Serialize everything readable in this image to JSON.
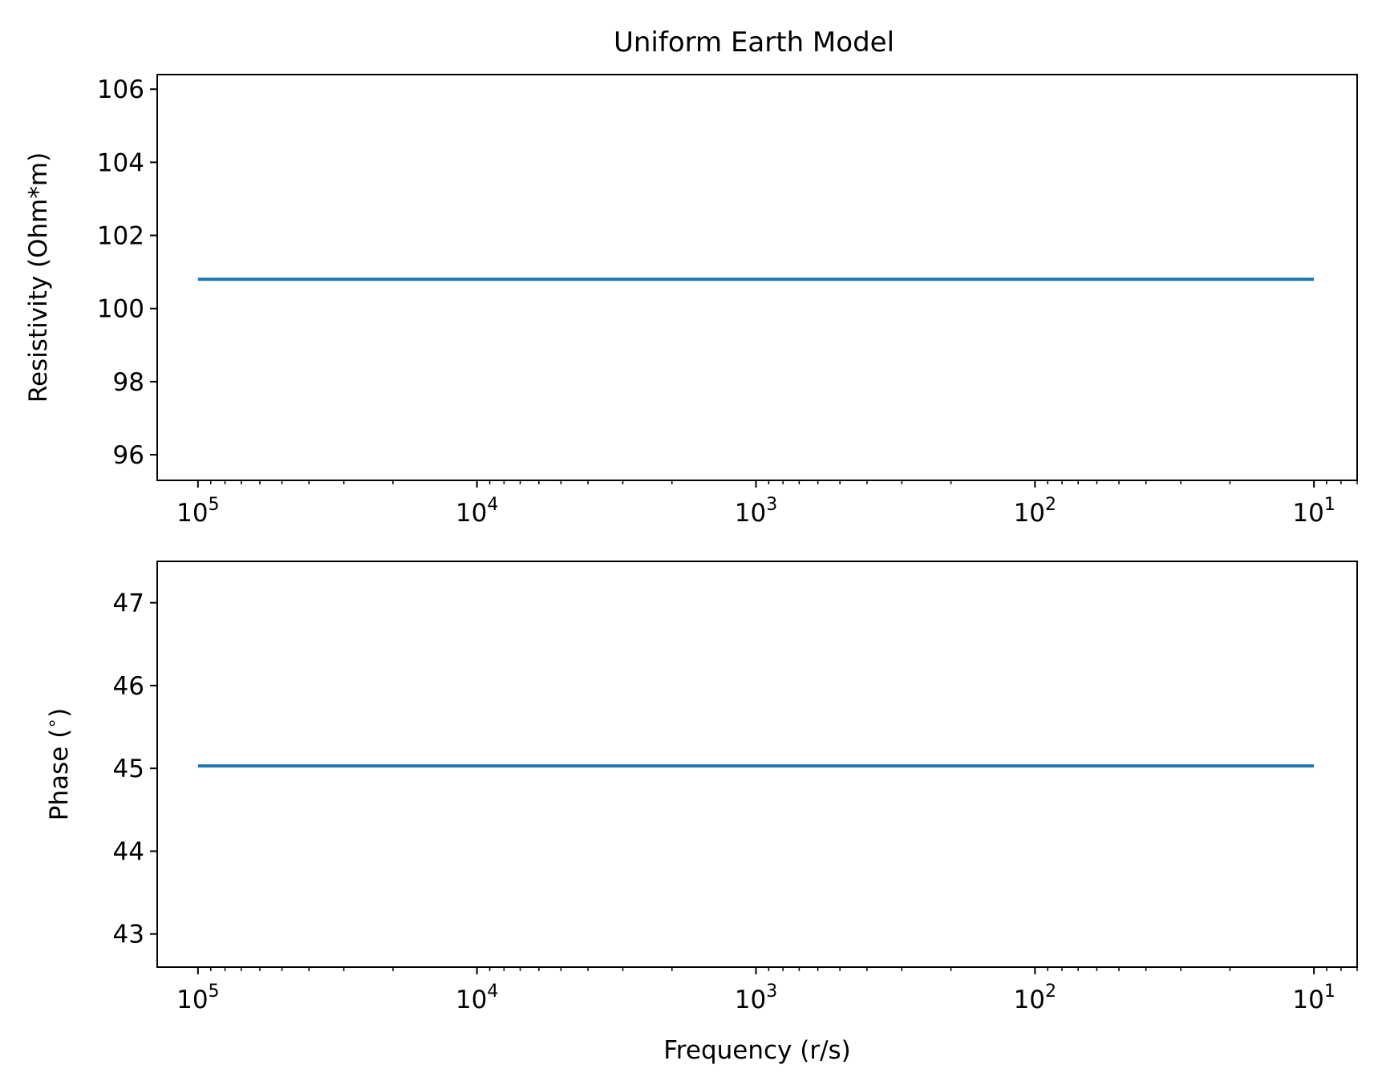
{
  "figure_title": "Uniform Earth Model",
  "colors": {
    "series": "#1f77b4",
    "axes": "#000000",
    "background": "#ffffff"
  },
  "chart_data": [
    {
      "type": "line",
      "title": "Uniform Earth Model",
      "xlabel": "",
      "ylabel": "Resistivity (Ohm*m)",
      "x_scale": "log",
      "x_inverted": true,
      "xlim": [
        140000,
        7
      ],
      "ylim": [
        95.3,
        106.4
      ],
      "x_ticks": [
        100000,
        10000,
        1000,
        100,
        10
      ],
      "x_tick_labels": [
        {
          "base": "10",
          "exp": "5"
        },
        {
          "base": "10",
          "exp": "4"
        },
        {
          "base": "10",
          "exp": "3"
        },
        {
          "base": "10",
          "exp": "2"
        },
        {
          "base": "10",
          "exp": "1"
        }
      ],
      "y_ticks": [
        96,
        98,
        100,
        102,
        104,
        106
      ],
      "y_tick_labels": [
        "96",
        "98",
        "100",
        "102",
        "104",
        "106"
      ],
      "grid": false,
      "series": [
        {
          "x": [
            100000,
            10
          ],
          "y": [
            100.8,
            100.8
          ]
        }
      ]
    },
    {
      "type": "line",
      "title": "",
      "xlabel": "Frequency (r/s)",
      "ylabel": "Phase ($^\\circ$)",
      "ylabel_parts": {
        "text": "Phase (",
        "sup": "∘",
        "close": ")"
      },
      "x_scale": "log",
      "x_inverted": true,
      "xlim": [
        140000,
        7
      ],
      "ylim": [
        42.6,
        47.5
      ],
      "x_ticks": [
        100000,
        10000,
        1000,
        100,
        10
      ],
      "x_tick_labels": [
        {
          "base": "10",
          "exp": "5"
        },
        {
          "base": "10",
          "exp": "4"
        },
        {
          "base": "10",
          "exp": "3"
        },
        {
          "base": "10",
          "exp": "2"
        },
        {
          "base": "10",
          "exp": "1"
        }
      ],
      "y_ticks": [
        43,
        44,
        45,
        46,
        47
      ],
      "y_tick_labels": [
        "43",
        "44",
        "45",
        "46",
        "47"
      ],
      "grid": false,
      "series": [
        {
          "x": [
            100000,
            10
          ],
          "y": [
            45.03,
            45.03
          ]
        }
      ]
    }
  ]
}
